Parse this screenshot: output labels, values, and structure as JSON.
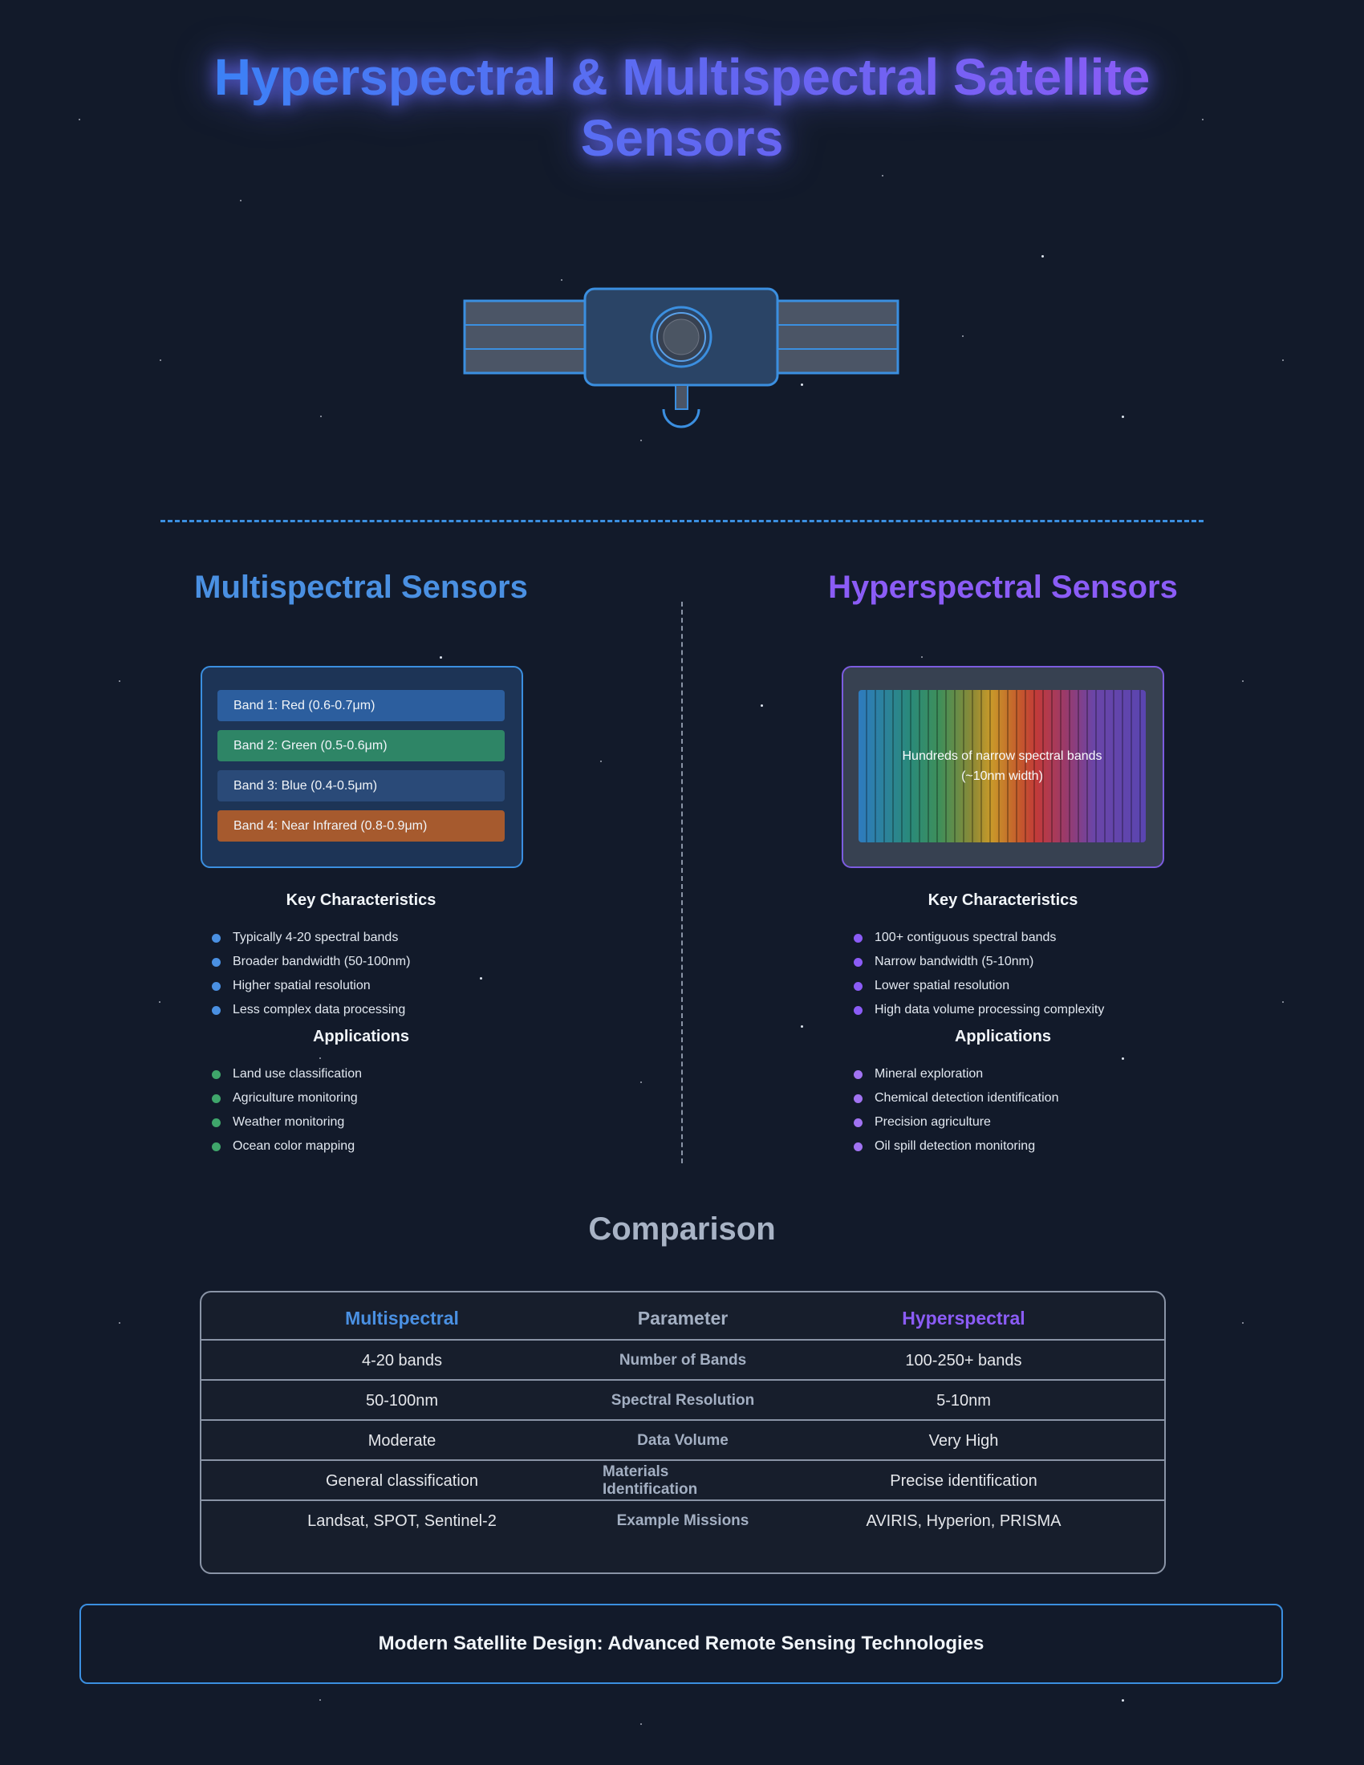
{
  "page": {
    "title": "Hyperspectral & Multispectral Satellite Sensors"
  },
  "colors": {
    "background": "#121a2a",
    "multispectral_accent": "#4a90e2",
    "hyperspectral_accent": "#8b5cf6",
    "applications_dot": "#3fa66b"
  },
  "multispectral": {
    "title": "Multispectral Sensors",
    "bands": [
      {
        "label": "Band 1: Red (0.6-0.7μm)",
        "color": "#2c5e9e"
      },
      {
        "label": "Band 2: Green (0.5-0.6μm)",
        "color": "#2e8566"
      },
      {
        "label": "Band 3: Blue (0.4-0.5μm)",
        "color": "#2a4a78"
      },
      {
        "label": "Band 4: Near Infrared (0.8-0.9μm)",
        "color": "#a65a2e"
      }
    ],
    "characteristics_heading": "Key Characteristics",
    "characteristics": [
      "Typically 4-20 spectral bands",
      "Broader bandwidth (50-100nm)",
      "Higher spatial resolution",
      "Less complex data processing"
    ],
    "applications_heading": "Applications",
    "applications": [
      "Land use classification",
      "Agriculture monitoring",
      "Weather monitoring",
      "Ocean color mapping"
    ]
  },
  "hyperspectral": {
    "title": "Hyperspectral Sensors",
    "spectrum_label": "Hundreds of narrow spectral bands\n(~10nm width)",
    "characteristics_heading": "Key Characteristics",
    "characteristics": [
      "100+ contiguous spectral bands",
      "Narrow bandwidth (5-10nm)",
      "Lower spatial resolution",
      "High data volume processing complexity"
    ],
    "applications_heading": "Applications",
    "applications": [
      "Mineral exploration",
      "Chemical detection identification",
      "Precision agriculture",
      "Oil spill detection monitoring"
    ]
  },
  "comparison": {
    "title": "Comparison",
    "headers": [
      "Multispectral",
      "Parameter",
      "Hyperspectral"
    ],
    "rows": [
      [
        "4-20 bands",
        "Number of Bands",
        "100-250+ bands"
      ],
      [
        "50-100nm",
        "Spectral Resolution",
        "5-10nm"
      ],
      [
        "Moderate",
        "Data Volume",
        "Very High"
      ],
      [
        "General classification",
        "Materials Identification",
        "Precise identification"
      ],
      [
        "Landsat, SPOT, Sentinel-2",
        "Example Missions",
        "AVIRIS, Hyperion, PRISMA"
      ]
    ]
  },
  "footer": {
    "text": "Modern Satellite Design: Advanced Remote Sensing Technologies"
  }
}
